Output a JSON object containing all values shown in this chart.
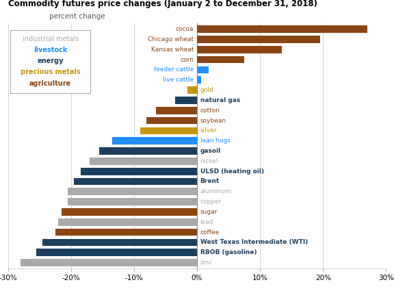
{
  "title": "Commodity futures price changes (January 2 to December 31, 2018)",
  "subtitle": "percent change",
  "commodities": [
    {
      "name": "cocoa",
      "value": 27.0,
      "category": "agriculture",
      "bold": false
    },
    {
      "name": "Chicago wheat",
      "value": 19.5,
      "category": "agriculture",
      "bold": false
    },
    {
      "name": "Kansas wheat",
      "value": 13.5,
      "category": "agriculture",
      "bold": false
    },
    {
      "name": "corn",
      "value": 7.5,
      "category": "agriculture",
      "bold": false
    },
    {
      "name": "feeder cattle",
      "value": 1.8,
      "category": "livestock",
      "bold": false
    },
    {
      "name": "live cattle",
      "value": 0.6,
      "category": "livestock",
      "bold": false
    },
    {
      "name": "gold",
      "value": -1.5,
      "category": "precious metals",
      "bold": false
    },
    {
      "name": "natural gas",
      "value": -3.5,
      "category": "energy",
      "bold": true
    },
    {
      "name": "cotton",
      "value": -6.5,
      "category": "agriculture",
      "bold": false
    },
    {
      "name": "soybean",
      "value": -8.0,
      "category": "agriculture",
      "bold": false
    },
    {
      "name": "silver",
      "value": -9.0,
      "category": "precious metals",
      "bold": false
    },
    {
      "name": "lean hogs",
      "value": -13.5,
      "category": "livestock",
      "bold": false
    },
    {
      "name": "gasoil",
      "value": -15.5,
      "category": "energy",
      "bold": true
    },
    {
      "name": "nickel",
      "value": -17.0,
      "category": "industrial metals",
      "bold": false
    },
    {
      "name": "ULSD (heating oil)",
      "value": -18.5,
      "category": "energy",
      "bold": true
    },
    {
      "name": "Brent",
      "value": -19.5,
      "category": "energy",
      "bold": true
    },
    {
      "name": "aluminum",
      "value": -20.5,
      "category": "industrial metals",
      "bold": false
    },
    {
      "name": "copper",
      "value": -20.5,
      "category": "industrial metals",
      "bold": false
    },
    {
      "name": "sugar",
      "value": -21.5,
      "category": "agriculture",
      "bold": false
    },
    {
      "name": "lead",
      "value": -22.0,
      "category": "industrial metals",
      "bold": false
    },
    {
      "name": "coffee",
      "value": -22.5,
      "category": "agriculture",
      "bold": false
    },
    {
      "name": "West Texas Intermediate (WTI)",
      "value": -24.5,
      "category": "energy",
      "bold": true
    },
    {
      "name": "RBOB (gasoline)",
      "value": -25.5,
      "category": "energy",
      "bold": true
    },
    {
      "name": "zinc",
      "value": -28.0,
      "category": "industrial metals",
      "bold": false
    }
  ],
  "category_colors": {
    "agriculture": "#8B4513",
    "livestock": "#1E90FF",
    "energy": "#1C3F5E",
    "precious metals": "#C8960C",
    "industrial metals": "#AAAAAA"
  },
  "legend": [
    {
      "label": "industrial metals",
      "color": "#AAAAAA",
      "bold": false
    },
    {
      "label": "livestock",
      "color": "#1E90FF",
      "bold": true
    },
    {
      "label": "energy",
      "color": "#1C3F5E",
      "bold": true
    },
    {
      "label": "precious metals",
      "color": "#C8960C",
      "bold": true
    },
    {
      "label": "agriculture",
      "color": "#8B4513",
      "bold": true
    }
  ],
  "xlim": [
    -30,
    30
  ],
  "xticks": [
    -30,
    -20,
    -10,
    0,
    10,
    20,
    30
  ],
  "xtick_labels": [
    "-30%",
    "-20%",
    "-10%",
    "0%",
    "10%",
    "20%",
    "30%"
  ],
  "bar_height": 0.72,
  "background_color": "#FFFFFF"
}
